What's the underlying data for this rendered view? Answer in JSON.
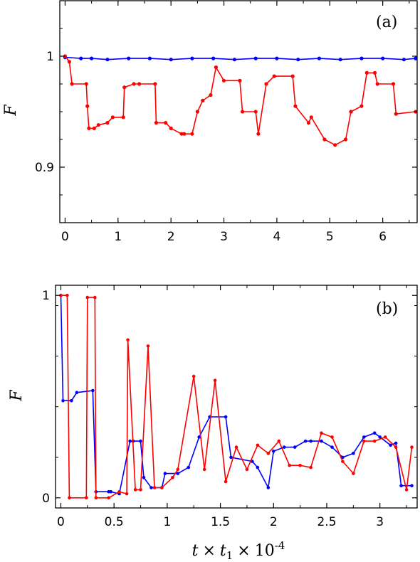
{
  "chart_data": [
    {
      "type": "line",
      "panel_label": "(a)",
      "ylabel": "F",
      "xlabel": "",
      "xlim": [
        -0.1,
        6.65
      ],
      "ylim": [
        0.85,
        1.05
      ],
      "x_ticks": [
        "0",
        "1",
        "2",
        "3",
        "4",
        "5",
        "6"
      ],
      "y_ticks": [
        "0.9",
        "1"
      ],
      "x_tick_values": [
        0,
        1,
        2,
        3,
        4,
        5,
        6
      ],
      "y_tick_values": [
        0.9,
        1.0
      ],
      "series": [
        {
          "color": "#0000ff",
          "x": [
            0.0,
            0.3,
            0.5,
            0.8,
            1.2,
            1.6,
            2.0,
            2.4,
            2.8,
            3.2,
            3.6,
            4.0,
            4.4,
            4.8,
            5.2,
            5.6,
            6.0,
            6.4,
            6.62
          ],
          "y": [
            0.999,
            0.998,
            0.998,
            0.997,
            0.998,
            0.998,
            0.997,
            0.998,
            0.998,
            0.997,
            0.998,
            0.998,
            0.997,
            0.998,
            0.997,
            0.998,
            0.998,
            0.997,
            0.998
          ]
        },
        {
          "color": "#ff0000",
          "x": [
            0.0,
            0.08,
            0.13,
            0.4,
            0.42,
            0.45,
            0.55,
            0.63,
            0.8,
            0.9,
            1.1,
            1.12,
            1.3,
            1.4,
            1.7,
            1.72,
            1.9,
            2.0,
            2.2,
            2.25,
            2.4,
            2.5,
            2.6,
            2.75,
            2.85,
            3.0,
            3.3,
            3.35,
            3.6,
            3.65,
            3.8,
            3.95,
            4.3,
            4.35,
            4.6,
            4.65,
            4.9,
            5.1,
            5.3,
            5.4,
            5.6,
            5.7,
            5.85,
            5.9,
            6.2,
            6.25,
            6.62
          ],
          "y": [
            1.0,
            0.995,
            0.975,
            0.975,
            0.955,
            0.935,
            0.935,
            0.938,
            0.94,
            0.945,
            0.945,
            0.972,
            0.975,
            0.975,
            0.975,
            0.94,
            0.94,
            0.935,
            0.93,
            0.93,
            0.93,
            0.95,
            0.96,
            0.965,
            0.99,
            0.978,
            0.978,
            0.95,
            0.95,
            0.93,
            0.975,
            0.982,
            0.982,
            0.955,
            0.94,
            0.945,
            0.925,
            0.92,
            0.925,
            0.95,
            0.955,
            0.985,
            0.985,
            0.975,
            0.975,
            0.948,
            0.95
          ]
        }
      ]
    },
    {
      "type": "line",
      "panel_label": "(b)",
      "ylabel": "F",
      "xlabel_parts": {
        "t": "t",
        "times1": "×",
        "t1": "t",
        "t1_sub": "1",
        "times2": "×",
        "pow_base": "10",
        "pow_exp": "-4"
      },
      "xlim": [
        -0.05,
        3.35
      ],
      "ylim": [
        -0.05,
        1.05
      ],
      "x_ticks": [
        "0",
        "0.5",
        "1",
        "1.5",
        "2",
        "2.5",
        "3"
      ],
      "y_ticks": [
        "0",
        "1"
      ],
      "x_tick_values": [
        0,
        0.5,
        1,
        1.5,
        2,
        2.5,
        3
      ],
      "y_tick_values": [
        0,
        1
      ],
      "series": [
        {
          "color": "#0000ff",
          "x": [
            0.0,
            0.02,
            0.1,
            0.15,
            0.3,
            0.33,
            0.45,
            0.47,
            0.55,
            0.65,
            0.68,
            0.75,
            0.78,
            0.85,
            0.95,
            0.98,
            1.1,
            1.2,
            1.3,
            1.4,
            1.55,
            1.6,
            1.8,
            1.85,
            1.95,
            2.0,
            2.1,
            2.2,
            2.3,
            2.35,
            2.45,
            2.55,
            2.65,
            2.75,
            2.85,
            2.95,
            3.0,
            3.1,
            3.15,
            3.2,
            3.3
          ],
          "y": [
            1.0,
            0.48,
            0.48,
            0.52,
            0.53,
            0.03,
            0.03,
            0.03,
            0.02,
            0.28,
            0.28,
            0.28,
            0.1,
            0.05,
            0.05,
            0.12,
            0.12,
            0.15,
            0.3,
            0.4,
            0.4,
            0.2,
            0.18,
            0.15,
            0.05,
            0.23,
            0.25,
            0.25,
            0.28,
            0.28,
            0.28,
            0.25,
            0.2,
            0.22,
            0.3,
            0.32,
            0.3,
            0.26,
            0.27,
            0.06,
            0.06
          ]
        },
        {
          "color": "#ff0000",
          "x": [
            0.0,
            0.06,
            0.08,
            0.24,
            0.25,
            0.32,
            0.33,
            0.45,
            0.55,
            0.62,
            0.63,
            0.7,
            0.75,
            0.82,
            0.88,
            0.95,
            1.05,
            1.1,
            1.25,
            1.35,
            1.45,
            1.55,
            1.65,
            1.75,
            1.85,
            1.95,
            2.05,
            2.15,
            2.25,
            2.35,
            2.45,
            2.55,
            2.65,
            2.75,
            2.85,
            2.95,
            3.05,
            3.15,
            3.25,
            3.3
          ],
          "y": [
            1.0,
            1.0,
            0.0,
            0.0,
            0.99,
            0.99,
            0.0,
            0.0,
            0.03,
            0.02,
            0.78,
            0.04,
            0.04,
            0.75,
            0.05,
            0.05,
            0.1,
            0.14,
            0.6,
            0.14,
            0.58,
            0.08,
            0.25,
            0.14,
            0.26,
            0.22,
            0.28,
            0.16,
            0.16,
            0.15,
            0.32,
            0.3,
            0.18,
            0.12,
            0.28,
            0.28,
            0.3,
            0.25,
            0.04,
            0.25
          ]
        }
      ]
    }
  ]
}
